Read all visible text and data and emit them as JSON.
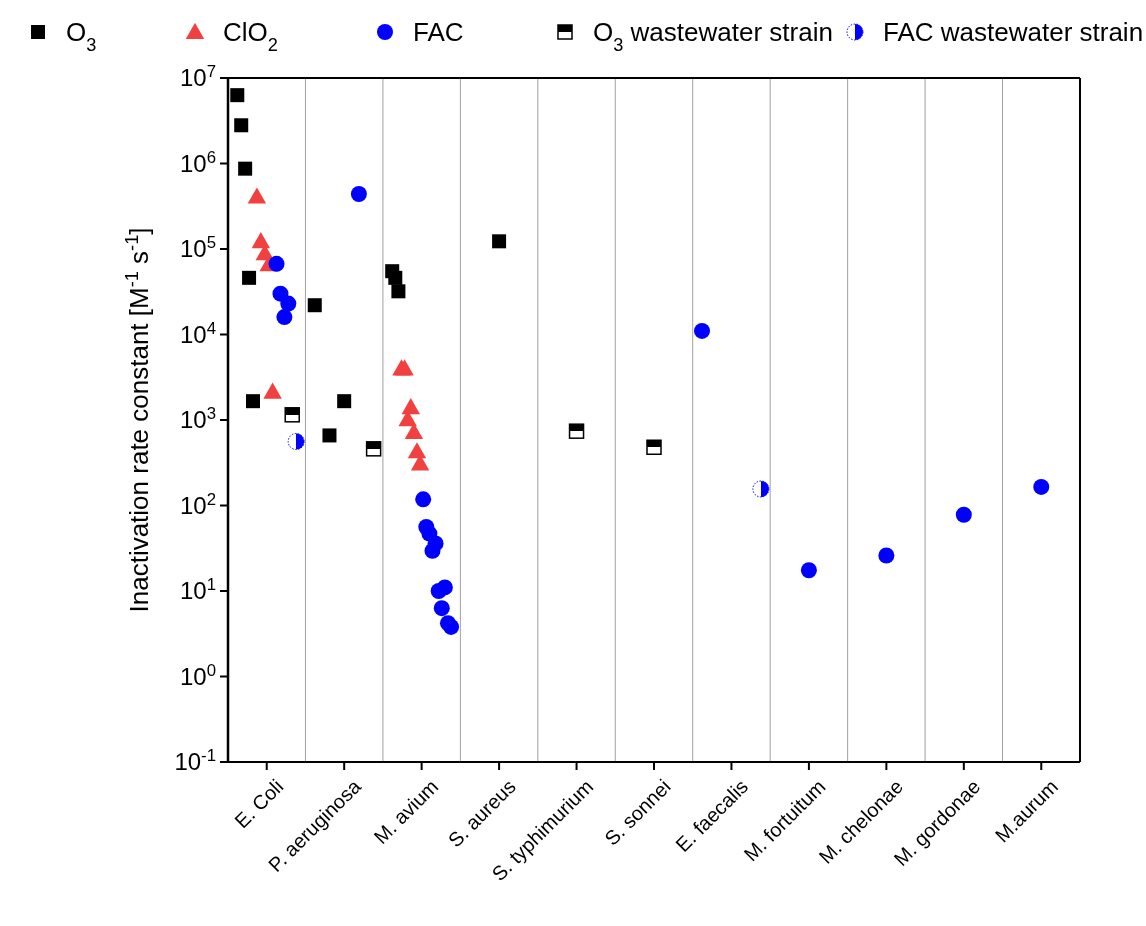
{
  "chart_data": {
    "type": "scatter",
    "ylabel": "Inactivation rate constant [M$^{-1}$ s$^{-1}$]",
    "log": "y",
    "legend": "top",
    "categories": [
      "E. Coli",
      "P. aeruginosa",
      "M. avium",
      "S. aureus",
      "S. typhimurium",
      "S. sonnei",
      "E. faecalis",
      "M. fortuitum",
      "M. chelonae",
      "M. gordonae",
      "M.aurum"
    ],
    "ylim": [
      0.1,
      10000000
    ],
    "yticks": [
      {
        "value": 0.1,
        "label": "10$^{-1}$"
      },
      {
        "value": 1,
        "label": "10$^{0}$"
      },
      {
        "value": 10,
        "label": "10$^{1}$"
      },
      {
        "value": 100,
        "label": "10$^{2}$"
      },
      {
        "value": 1000,
        "label": "10$^{3}$"
      },
      {
        "value": 10000,
        "label": "10$^{4}$"
      },
      {
        "value": 100000,
        "label": "10$^{5}$"
      },
      {
        "value": 1000000,
        "label": "10$^{6}$"
      },
      {
        "value": 10000000,
        "label": "10$^{7}$"
      }
    ],
    "series": [
      {
        "name": "O$_{3}$",
        "color": "#000000",
        "marker": "square",
        "x": [
          "E. Coli",
          "E. Coli",
          "E. Coli",
          "E. Coli",
          "E. Coli",
          "P. aeruginosa",
          "P. aeruginosa",
          "P. aeruginosa",
          "M. avium",
          "M. avium",
          "M. avium",
          "S. aureus"
        ],
        "values": [
          6300000,
          2800000,
          870000,
          46000,
          1660,
          22000,
          660,
          1660,
          55000,
          46000,
          32000,
          123000
        ]
      },
      {
        "name": "ClO$_{2}$",
        "color": "#f04040",
        "marker": "triangle",
        "x": [
          "E. Coli",
          "E. Coli",
          "E. Coli",
          "E. Coli",
          "E. Coli",
          "M. avium",
          "M. avium",
          "M. avium",
          "M. avium",
          "M. avium",
          "M. avium",
          "M. avium"
        ],
        "values": [
          410000,
          123000,
          89000,
          66000,
          2140,
          4000,
          4000,
          1020,
          1410,
          720,
          430,
          310
        ]
      },
      {
        "name": "FAC",
        "color": "#0000ff",
        "marker": "circle",
        "x": [
          "E. Coli",
          "E. Coli",
          "E. Coli",
          "E. Coli",
          "P. aeruginosa",
          "M. avium",
          "M. avium",
          "M. avium",
          "M. avium",
          "M. avium",
          "M. avium",
          "M. avium",
          "M. avium",
          "M. avium",
          "M. avium",
          "E. faecalis",
          "M. fortuitum",
          "M. chelonae",
          "M. gordonae",
          "M.aurum"
        ],
        "values": [
          67000,
          30000,
          16000,
          23000,
          440000,
          118,
          56,
          47,
          29.5,
          36,
          10,
          6.3,
          11,
          4.2,
          3.8,
          11000,
          17.5,
          26,
          78,
          165
        ]
      },
      {
        "name": "O$_{3}$ wastewater strain",
        "color": "#000000",
        "marker": "square",
        "x": [
          "E. Coli",
          "P. aeruginosa",
          "S. typhimurium",
          "S. sonnei"
        ],
        "values": [
          1150,
          460,
          740,
          480
        ]
      },
      {
        "name": "FAC wastewater strain",
        "color": "#0000ff",
        "marker": "circle",
        "x": [
          "E. Coli",
          "E. faecalis"
        ],
        "values": [
          560,
          156
        ]
      }
    ]
  }
}
